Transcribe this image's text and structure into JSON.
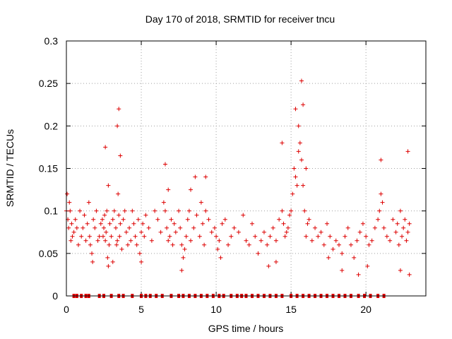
{
  "chart_data": {
    "type": "scatter",
    "title": "Day 170 of 2018, SRMTID for receiver tncu",
    "xlabel": "GPS time / hours",
    "ylabel": "SRMTID / TECUs",
    "xlim": [
      0,
      24
    ],
    "ylim": [
      0,
      0.3
    ],
    "xticks": [
      0,
      5,
      10,
      15,
      20
    ],
    "yticks": [
      0,
      0.05,
      0.1,
      0.15,
      0.2,
      0.25,
      0.3
    ],
    "xtick_labels": [
      "0",
      "5",
      "10",
      "15",
      "20"
    ],
    "ytick_labels": [
      "0",
      "0.05",
      "0.1",
      "0.15",
      "0.2",
      "0.25",
      "0.3"
    ],
    "grid": true,
    "series": [
      {
        "name": "SRMTID",
        "color": "#dd0000",
        "marker": "plus",
        "x": [
          0.0,
          0.05,
          0.1,
          0.15,
          0.2,
          0.25,
          0.3,
          0.35,
          0.4,
          0.5,
          0.6,
          0.7,
          0.8,
          0.9,
          1.0,
          1.1,
          1.2,
          1.3,
          1.4,
          1.5,
          1.55,
          1.6,
          1.7,
          1.75,
          1.8,
          1.9,
          2.0,
          2.1,
          2.2,
          2.3,
          2.4,
          2.45,
          2.5,
          2.55,
          2.6,
          2.65,
          2.7,
          2.75,
          2.8,
          2.85,
          2.9,
          3.0,
          3.1,
          3.2,
          3.3,
          3.35,
          3.4,
          3.45,
          3.5,
          3.55,
          3.6,
          3.7,
          3.8,
          3.9,
          4.0,
          4.1,
          4.2,
          4.3,
          4.4,
          4.5,
          4.6,
          4.7,
          4.8,
          4.9,
          5.0,
          5.1,
          5.2,
          5.3,
          5.5,
          5.7,
          5.9,
          6.1,
          6.3,
          6.5,
          6.6,
          6.7,
          6.8,
          6.9,
          7.0,
          7.1,
          7.2,
          7.3,
          7.5,
          7.6,
          7.7,
          7.8,
          7.9,
          8.0,
          8.1,
          8.2,
          8.3,
          8.5,
          8.7,
          8.9,
          9.0,
          9.1,
          9.2,
          9.3,
          9.5,
          9.7,
          9.9,
          10.0,
          10.1,
          10.2,
          10.4,
          10.6,
          10.8,
          11.0,
          11.2,
          11.5,
          11.8,
          12.0,
          12.2,
          12.4,
          12.6,
          12.8,
          13.0,
          13.2,
          13.4,
          13.6,
          13.8,
          14.0,
          14.2,
          14.4,
          14.5,
          14.6,
          14.7,
          14.8,
          14.9,
          15.0,
          15.1,
          15.2,
          15.3,
          15.4,
          15.5,
          15.6,
          15.7,
          15.8,
          15.9,
          16.0,
          16.1,
          16.2,
          16.4,
          16.6,
          16.8,
          17.0,
          17.2,
          17.4,
          17.6,
          17.8,
          18.0,
          18.2,
          18.4,
          18.6,
          18.8,
          19.0,
          19.2,
          19.4,
          19.6,
          19.8,
          20.0,
          20.2,
          20.4,
          20.6,
          20.8,
          20.9,
          21.0,
          21.1,
          21.2,
          21.4,
          21.6,
          21.8,
          22.0,
          22.1,
          22.2,
          22.3,
          22.4,
          22.5,
          22.6,
          22.7,
          22.8,
          22.9,
          2.6,
          2.8,
          3.4,
          3.5,
          3.6,
          6.6,
          6.8,
          8.3,
          8.6,
          9.3,
          14.4,
          15.3,
          15.5,
          15.7,
          15.8,
          16.0,
          21.0,
          22.8,
          3.1,
          5.0,
          7.7,
          10.3,
          13.5,
          14.0,
          17.5,
          18.4,
          19.5,
          20.1,
          22.3,
          22.9
        ],
        "y": [
          0.1,
          0.12,
          0.09,
          0.08,
          0.11,
          0.1,
          0.065,
          0.085,
          0.07,
          0.075,
          0.09,
          0.08,
          0.06,
          0.1,
          0.07,
          0.08,
          0.095,
          0.065,
          0.085,
          0.11,
          0.07,
          0.06,
          0.05,
          0.04,
          0.09,
          0.08,
          0.1,
          0.065,
          0.07,
          0.085,
          0.09,
          0.07,
          0.08,
          0.095,
          0.065,
          0.075,
          0.1,
          0.045,
          0.035,
          0.06,
          0.085,
          0.07,
          0.09,
          0.1,
          0.08,
          0.06,
          0.065,
          0.12,
          0.095,
          0.07,
          0.085,
          0.055,
          0.09,
          0.1,
          0.075,
          0.06,
          0.08,
          0.065,
          0.1,
          0.085,
          0.07,
          0.06,
          0.09,
          0.05,
          0.075,
          0.085,
          0.07,
          0.095,
          0.08,
          0.065,
          0.1,
          0.09,
          0.075,
          0.11,
          0.1,
          0.08,
          0.065,
          0.07,
          0.09,
          0.06,
          0.085,
          0.075,
          0.1,
          0.08,
          0.06,
          0.045,
          0.055,
          0.07,
          0.09,
          0.1,
          0.065,
          0.08,
          0.095,
          0.07,
          0.11,
          0.085,
          0.06,
          0.1,
          0.09,
          0.075,
          0.08,
          0.07,
          0.055,
          0.065,
          0.085,
          0.09,
          0.06,
          0.07,
          0.08,
          0.075,
          0.095,
          0.065,
          0.06,
          0.085,
          0.07,
          0.05,
          0.065,
          0.075,
          0.06,
          0.07,
          0.08,
          0.065,
          0.09,
          0.1,
          0.085,
          0.07,
          0.075,
          0.08,
          0.095,
          0.1,
          0.12,
          0.15,
          0.14,
          0.13,
          0.17,
          0.18,
          0.16,
          0.13,
          0.1,
          0.07,
          0.085,
          0.09,
          0.065,
          0.08,
          0.07,
          0.075,
          0.06,
          0.085,
          0.07,
          0.055,
          0.065,
          0.06,
          0.05,
          0.07,
          0.08,
          0.06,
          0.045,
          0.065,
          0.075,
          0.085,
          0.07,
          0.06,
          0.065,
          0.08,
          0.09,
          0.1,
          0.12,
          0.11,
          0.08,
          0.07,
          0.065,
          0.09,
          0.075,
          0.085,
          0.06,
          0.1,
          0.07,
          0.08,
          0.09,
          0.065,
          0.075,
          0.085,
          0.175,
          0.13,
          0.2,
          0.22,
          0.165,
          0.155,
          0.125,
          0.125,
          0.14,
          0.14,
          0.18,
          0.22,
          0.2,
          0.253,
          0.225,
          0.15,
          0.16,
          0.17,
          0.04,
          0.04,
          0.03,
          0.045,
          0.035,
          0.04,
          0.045,
          0.03,
          0.025,
          0.035,
          0.03,
          0.025
        ],
        "zero_values_x": [
          0.5,
          0.7,
          1.0,
          1.3,
          1.5,
          2.2,
          2.5,
          3.0,
          3.5,
          3.8,
          4.4,
          5.0,
          5.3,
          5.6,
          6.0,
          6.4,
          7.0,
          7.5,
          7.8,
          8.2,
          8.6,
          9.0,
          9.4,
          9.8,
          10.2,
          10.5,
          11.0,
          11.4,
          11.7,
          12.0,
          12.4,
          12.8,
          13.2,
          13.6,
          14.0,
          14.4,
          15.0,
          15.4,
          15.8,
          16.2,
          16.6,
          17.0,
          17.4,
          17.8,
          18.2,
          18.6,
          19.0,
          19.5,
          19.9,
          20.3,
          20.8,
          21.2
        ]
      }
    ]
  }
}
